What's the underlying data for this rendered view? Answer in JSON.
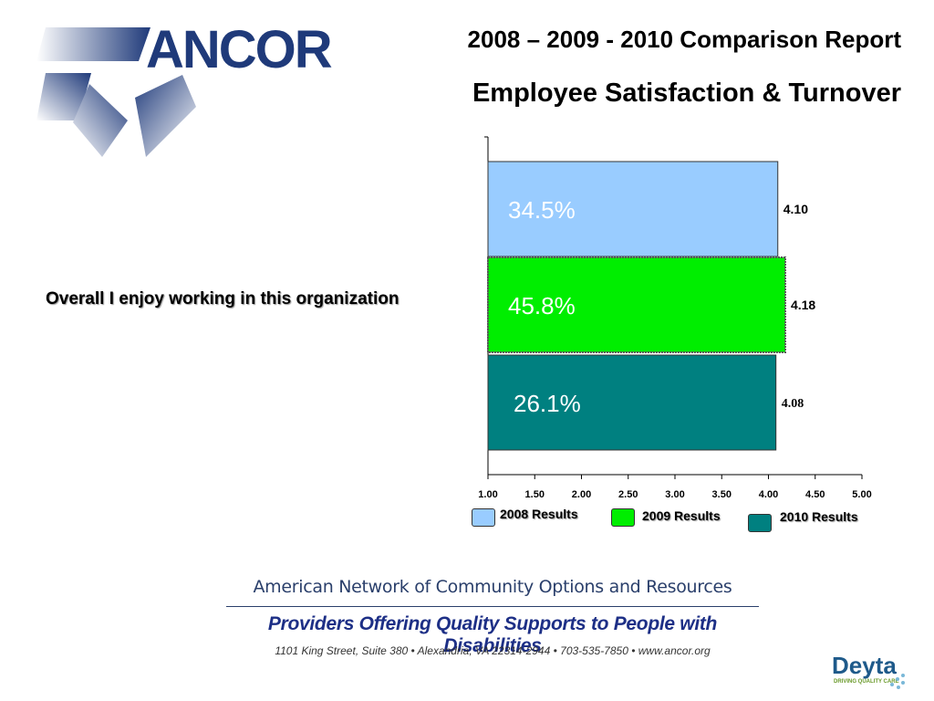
{
  "header": {
    "title": "2008 – 2009 - 2010 Comparison Report",
    "subtitle": "Employee Satisfaction & Turnover"
  },
  "logo": {
    "text": "ANCOR"
  },
  "question_label": "Overall I  enjoy working in this organization",
  "chart_data": {
    "type": "bar",
    "orientation": "horizontal",
    "categories": [
      "Overall I  enjoy working in this organization"
    ],
    "series": [
      {
        "name": "2008 Results",
        "value": 4.1,
        "value_label": "4.10",
        "inner_label": "34.5%",
        "color": "#99ccff"
      },
      {
        "name": "2009 Results",
        "value": 4.18,
        "value_label": "4.18",
        "inner_label": "45.8%",
        "color": "#00ee00"
      },
      {
        "name": "2010 Results",
        "value": 4.08,
        "value_label": "4.08",
        "inner_label": "26.1%",
        "color": "#008080"
      }
    ],
    "xlim": [
      1.0,
      5.0
    ],
    "xticks": [
      "1.00",
      "1.50",
      "2.00",
      "2.50",
      "3.00",
      "3.50",
      "4.00",
      "4.50",
      "5.00"
    ],
    "grid": false,
    "legend_position": "bottom"
  },
  "footer": {
    "line1": "American Network of Community Options and Resources",
    "line2": "Providers Offering Quality Supports to People with Disabilities",
    "line3": "1101 King Street, Suite 380 • Alexandria, VA 22314-2944 • 703-535-7850 • www.ancor.org"
  },
  "deyta": {
    "name": "Deyta",
    "tagline": "DRIVING QUALITY CARE"
  }
}
